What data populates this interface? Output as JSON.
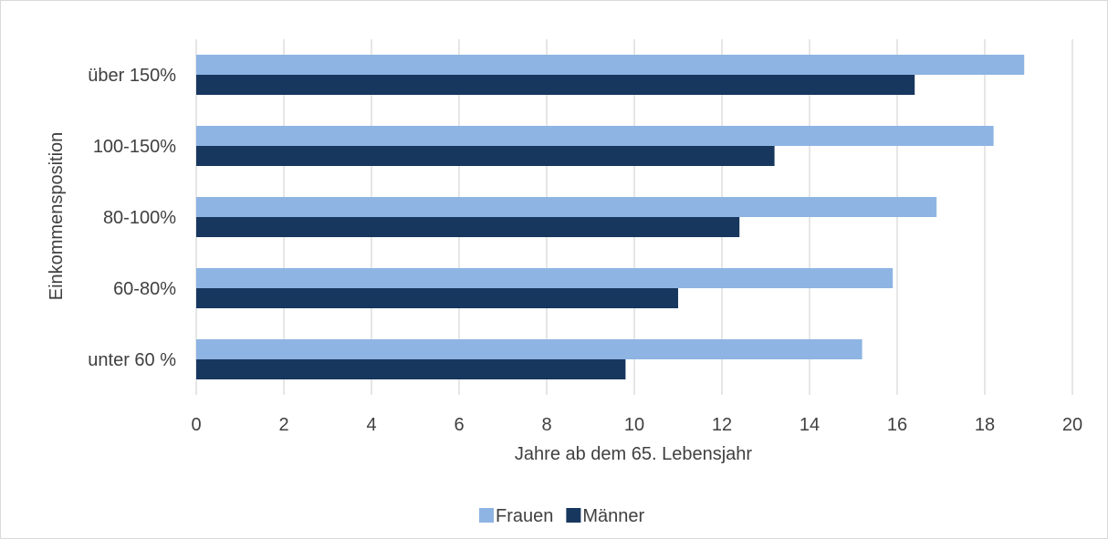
{
  "chart_data": {
    "type": "bar",
    "orientation": "horizontal",
    "categories": [
      "unter 60 %",
      "60-80%",
      "80-100%",
      "100-150%",
      "über 150%"
    ],
    "series": [
      {
        "name": "Frauen",
        "color": "#8eb4e3",
        "values": [
          15.2,
          15.9,
          16.9,
          18.2,
          18.9
        ]
      },
      {
        "name": "Männer",
        "color": "#17375e",
        "values": [
          9.8,
          11.0,
          12.4,
          13.2,
          16.4
        ]
      }
    ],
    "xlabel": "Jahre ab dem 65. Lebensjahr",
    "ylabel": "Einkommensposition",
    "xlim": [
      0,
      20
    ],
    "xticks": [
      "0",
      "2",
      "4",
      "6",
      "8",
      "10",
      "12",
      "14",
      "16",
      "18",
      "20"
    ],
    "grid": true,
    "gridColor": "#d9d9d9",
    "legend": "bottom"
  }
}
